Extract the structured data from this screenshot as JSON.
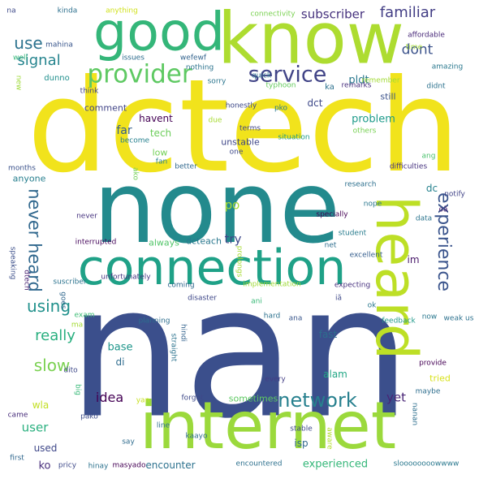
{
  "words": [
    {
      "text": "nan",
      "color": "#3b4f8c"
    },
    {
      "text": "dctech",
      "color": "#f1e31c"
    },
    {
      "text": "none",
      "color": "#238a8d"
    },
    {
      "text": "internet",
      "color": "#9bd93c"
    },
    {
      "text": "know",
      "color": "#addc30"
    },
    {
      "text": "good",
      "color": "#34b679"
    },
    {
      "text": "connection",
      "color": "#1fa187"
    },
    {
      "text": "heard",
      "color": "#bddf26"
    },
    {
      "text": "provider",
      "color": "#5ec962"
    },
    {
      "text": "service",
      "color": "#414487"
    },
    {
      "text": "network",
      "color": "#27808e"
    },
    {
      "text": "never heard",
      "color": "#31688e"
    },
    {
      "text": "experience",
      "color": "#3a548c"
    },
    {
      "text": "familiar",
      "color": "#433e85"
    },
    {
      "text": "subscriber",
      "color": "#46327e"
    },
    {
      "text": "dont",
      "color": "#3b528b"
    },
    {
      "text": "use",
      "color": "#2c728e"
    },
    {
      "text": "signal",
      "color": "#25848e"
    },
    {
      "text": "using",
      "color": "#21918c"
    },
    {
      "text": "really",
      "color": "#29af7f"
    },
    {
      "text": "slow",
      "color": "#7ad151"
    },
    {
      "text": "idea",
      "color": "#440154"
    },
    {
      "text": "problem",
      "color": "#1e9b8a"
    },
    {
      "text": "try",
      "color": "#3e4989"
    },
    {
      "text": "po",
      "color": "#a8db34"
    },
    {
      "text": "experienced",
      "color": "#35b779"
    },
    {
      "text": "user",
      "color": "#2ab07f"
    },
    {
      "text": "yet",
      "color": "#482475"
    },
    {
      "text": "far",
      "color": "#355f8d"
    },
    {
      "text": "havent",
      "color": "#440154"
    },
    {
      "text": "tech",
      "color": "#6ccd5a"
    },
    {
      "text": "dct",
      "color": "#3e4989"
    },
    {
      "text": "pldt",
      "color": "#2a788e"
    },
    {
      "text": "base",
      "color": "#1f968b"
    },
    {
      "text": "di",
      "color": "#2f6c8e"
    },
    {
      "text": "comment",
      "color": "#414487"
    },
    {
      "text": "ko",
      "color": "#472d7b"
    },
    {
      "text": "wla",
      "color": "#c2df23"
    },
    {
      "text": "used",
      "color": "#3f4889"
    },
    {
      "text": "encounter",
      "color": "#2c718e"
    },
    {
      "text": "isp",
      "color": "#31688e"
    },
    {
      "text": "fast",
      "color": "#2e6e8e"
    },
    {
      "text": "alam",
      "color": "#22a785"
    },
    {
      "text": "im",
      "color": "#48186a"
    },
    {
      "text": "dc",
      "color": "#26828e"
    },
    {
      "text": "still",
      "color": "#3b528b"
    },
    {
      "text": "tried",
      "color": "#d8e219"
    },
    {
      "text": "sometimes",
      "color": "#5ec962"
    },
    {
      "text": "always",
      "color": "#52c569"
    },
    {
      "text": "low",
      "color": "#73d056"
    },
    {
      "text": "anyone",
      "color": "#277f8e"
    },
    {
      "text": "dcteach",
      "color": "#2a788e"
    },
    {
      "text": "unstable",
      "color": "#3f4788"
    },
    {
      "text": "quick",
      "color": "#2e6f8e"
    },
    {
      "text": "typhoon",
      "color": "#65cb5e"
    },
    {
      "text": "connectivity",
      "color": "#7ad151"
    },
    {
      "text": "mahina",
      "color": "#39568c"
    },
    {
      "text": "dunno",
      "color": "#21908d"
    },
    {
      "text": "kinda",
      "color": "#2d708e"
    },
    {
      "text": "anything",
      "color": "#d0e11c"
    },
    {
      "text": "wefewf",
      "color": "#33638d"
    },
    {
      "text": "nothing",
      "color": "#2c738e"
    },
    {
      "text": "issues",
      "color": "#2e6d8e"
    },
    {
      "text": "well",
      "color": "#35b779"
    },
    {
      "text": "na",
      "color": "#3e4a89"
    },
    {
      "text": "new",
      "color": "#9fda3a"
    },
    {
      "text": "think",
      "color": "#404387"
    },
    {
      "text": "sorry",
      "color": "#2b758e"
    },
    {
      "text": "ka",
      "color": "#2c718e"
    },
    {
      "text": "remarks",
      "color": "#472f7d"
    },
    {
      "text": "remember",
      "color": "#a2da37"
    },
    {
      "text": "affordable",
      "color": "#482979"
    },
    {
      "text": "time",
      "color": "#a5db36"
    },
    {
      "text": "amazing",
      "color": "#2a788e"
    },
    {
      "text": "didnt",
      "color": "#2c728e"
    },
    {
      "text": "honestly",
      "color": "#3e4989"
    },
    {
      "text": "pko",
      "color": "#2a788e"
    },
    {
      "text": "others",
      "color": "#77d153"
    },
    {
      "text": "due",
      "color": "#a8db34"
    },
    {
      "text": "terms",
      "color": "#404688"
    },
    {
      "text": "situation",
      "color": "#1f9a8a"
    },
    {
      "text": "one",
      "color": "#3e4989"
    },
    {
      "text": "become",
      "color": "#27808e"
    },
    {
      "text": "fan",
      "color": "#26828e"
    },
    {
      "text": "better",
      "color": "#31688e"
    },
    {
      "text": "months",
      "color": "#3b528b"
    },
    {
      "text": "ako",
      "color": "#73d056"
    },
    {
      "text": "ang",
      "color": "#4ac16d"
    },
    {
      "text": "difficulties",
      "color": "#46337f"
    },
    {
      "text": "notify",
      "color": "#404387"
    },
    {
      "text": "research",
      "color": "#2d708e"
    },
    {
      "text": "nope",
      "color": "#2a768e"
    },
    {
      "text": "specially",
      "color": "#440154"
    },
    {
      "text": "data",
      "color": "#2b748e"
    },
    {
      "text": "oã",
      "color": "#481f70"
    },
    {
      "text": "student",
      "color": "#287c8e"
    },
    {
      "text": "net",
      "color": "#2e6e8e"
    },
    {
      "text": "never",
      "color": "#46337f"
    },
    {
      "text": "interrupted",
      "color": "#46085c"
    },
    {
      "text": "excellent",
      "color": "#355e8d"
    },
    {
      "text": "prolongs",
      "color": "#a8db34"
    },
    {
      "text": "speaking",
      "color": "#3c4f8a"
    },
    {
      "text": "dtech",
      "color": "#482071"
    },
    {
      "text": "suscriber",
      "color": "#2c738e"
    },
    {
      "text": "unfortunately",
      "color": "#453581"
    },
    {
      "text": "coming",
      "color": "#31688e"
    },
    {
      "text": "implementation",
      "color": "#a0da39"
    },
    {
      "text": "expecting",
      "color": "#46307e"
    },
    {
      "text": "goes",
      "color": "#31688e"
    },
    {
      "text": "exam",
      "color": "#3dbc74"
    },
    {
      "text": "ani",
      "color": "#38b977"
    },
    {
      "text": "iã",
      "color": "#3e4989"
    },
    {
      "text": "ok",
      "color": "#2a788e"
    },
    {
      "text": "planning",
      "color": "#2e6e8e"
    },
    {
      "text": "disaster",
      "color": "#3f4889"
    },
    {
      "text": "ma",
      "color": "#a5db36"
    },
    {
      "text": "hard",
      "color": "#2c718e"
    },
    {
      "text": "ana",
      "color": "#39568c"
    },
    {
      "text": "feedback",
      "color": "#1f998a"
    },
    {
      "text": "now",
      "color": "#2a788e"
    },
    {
      "text": "weak us",
      "color": "#2d718e"
    },
    {
      "text": "hindi",
      "color": "#33638d"
    },
    {
      "text": "straight",
      "color": "#2c738e"
    },
    {
      "text": "dito",
      "color": "#3e4989"
    },
    {
      "text": "big",
      "color": "#37b878"
    },
    {
      "text": "provide",
      "color": "#440154"
    },
    {
      "text": "every",
      "color": "#433e85"
    },
    {
      "text": "maybe",
      "color": "#2e6e8e"
    },
    {
      "text": "yan",
      "color": "#c8e020"
    },
    {
      "text": "forgot",
      "color": "#3e4989"
    },
    {
      "text": "came",
      "color": "#472c7a"
    },
    {
      "text": "pako",
      "color": "#3d4d8a"
    },
    {
      "text": "nanan",
      "color": "#2e6f8e"
    },
    {
      "text": "aware",
      "color": "#b2dd2d"
    },
    {
      "text": "line",
      "color": "#2d708e"
    },
    {
      "text": "stable",
      "color": "#3e4989"
    },
    {
      "text": "say",
      "color": "#2f6c8e"
    },
    {
      "text": "kaayo",
      "color": "#2e6d8e"
    },
    {
      "text": "first",
      "color": "#31688e"
    },
    {
      "text": "pricy",
      "color": "#3e4989"
    },
    {
      "text": "hinay",
      "color": "#2c728e"
    },
    {
      "text": "masyado",
      "color": "#440154"
    },
    {
      "text": "encountered",
      "color": "#2d708e"
    },
    {
      "text": "sloooooooowwww",
      "color": "#2a788e"
    }
  ]
}
